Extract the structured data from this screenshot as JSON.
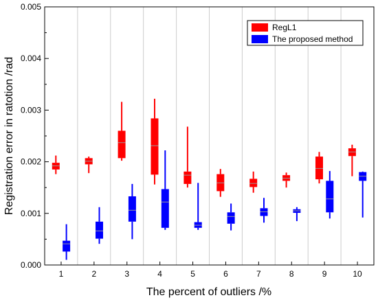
{
  "chart_data": {
    "type": "box",
    "title": "",
    "xlabel": "The percent of outliers /%",
    "ylabel": "Registration error in ratotion /rad",
    "ylim": [
      0,
      0.005
    ],
    "yticks": [
      "0.000",
      "0.001",
      "0.002",
      "0.003",
      "0.004",
      "0.005"
    ],
    "ytick_values": [
      0,
      0.001,
      0.002,
      0.003,
      0.004,
      0.005
    ],
    "categories": [
      "1",
      "2",
      "3",
      "4",
      "5",
      "6",
      "7",
      "8",
      "9",
      "10"
    ],
    "grid": "vertical",
    "legend_position": "top-right",
    "series": [
      {
        "name": "RegL1",
        "color": "#ff0000",
        "boxes": [
          {
            "min": 0.00176,
            "q1": 0.00185,
            "median": 0.00192,
            "q3": 0.00198,
            "max": 0.00212
          },
          {
            "min": 0.00178,
            "q1": 0.00195,
            "median": 0.00201,
            "q3": 0.00207,
            "max": 0.0021
          },
          {
            "min": 0.00202,
            "q1": 0.00207,
            "median": 0.00237,
            "q3": 0.0026,
            "max": 0.00316
          },
          {
            "min": 0.00156,
            "q1": 0.00175,
            "median": 0.00231,
            "q3": 0.00284,
            "max": 0.00322
          },
          {
            "min": 0.0015,
            "q1": 0.00157,
            "median": 0.00174,
            "q3": 0.00181,
            "max": 0.00268
          },
          {
            "min": 0.00132,
            "q1": 0.00143,
            "median": 0.00159,
            "q3": 0.00176,
            "max": 0.00186
          },
          {
            "min": 0.0014,
            "q1": 0.00151,
            "median": 0.00158,
            "q3": 0.00167,
            "max": 0.00181
          },
          {
            "min": 0.0015,
            "q1": 0.00163,
            "median": 0.00168,
            "q3": 0.00174,
            "max": 0.00179
          },
          {
            "min": 0.00158,
            "q1": 0.00166,
            "median": 0.00187,
            "q3": 0.0021,
            "max": 0.00219
          },
          {
            "min": 0.00172,
            "q1": 0.00211,
            "median": 0.00219,
            "q3": 0.00226,
            "max": 0.00233
          }
        ]
      },
      {
        "name": "The proposed method",
        "color": "#0000ff",
        "boxes": [
          {
            "min": 0.0001,
            "q1": 0.00026,
            "median": 0.00041,
            "q3": 0.00047,
            "max": 0.00079
          },
          {
            "min": 0.00041,
            "q1": 0.00051,
            "median": 0.00066,
            "q3": 0.00084,
            "max": 0.00112
          },
          {
            "min": 0.0005,
            "q1": 0.00084,
            "median": 0.00106,
            "q3": 0.00133,
            "max": 0.00157
          },
          {
            "min": 0.00068,
            "q1": 0.00072,
            "median": 0.00122,
            "q3": 0.00147,
            "max": 0.00222
          },
          {
            "min": 0.00068,
            "q1": 0.00072,
            "median": 0.00077,
            "q3": 0.00083,
            "max": 0.00159
          },
          {
            "min": 0.00067,
            "q1": 0.0008,
            "median": 0.00094,
            "q3": 0.00102,
            "max": 0.00119
          },
          {
            "min": 0.00082,
            "q1": 0.00095,
            "median": 0.00103,
            "q3": 0.0011,
            "max": 0.0013
          },
          {
            "min": 0.00085,
            "q1": 0.00101,
            "median": 0.00105,
            "q3": 0.00108,
            "max": 0.00112
          },
          {
            "min": 0.0009,
            "q1": 0.00102,
            "median": 0.00128,
            "q3": 0.00163,
            "max": 0.00182
          },
          {
            "min": 0.00092,
            "q1": 0.00163,
            "median": 0.00172,
            "q3": 0.0018,
            "max": 0.00181
          }
        ]
      }
    ]
  }
}
